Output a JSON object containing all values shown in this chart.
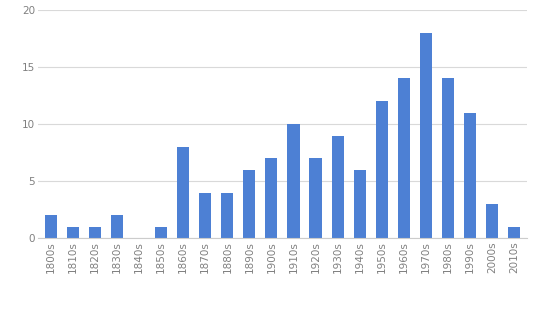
{
  "categories": [
    "1800s",
    "1810s",
    "1820s",
    "1830s",
    "1840s",
    "1850s",
    "1860s",
    "1870s",
    "1880s",
    "1890s",
    "1900s",
    "1910s",
    "1920s",
    "1930s",
    "1940s",
    "1950s",
    "1960s",
    "1970s",
    "1980s",
    "1990s",
    "2000s",
    "2010s"
  ],
  "values": [
    2,
    1,
    1,
    2,
    0,
    1,
    8,
    4,
    4,
    6,
    7,
    10,
    7,
    9,
    6,
    12,
    14,
    18,
    14,
    11,
    3,
    1
  ],
  "bar_color": "#4d80d4",
  "background_color": "#ffffff",
  "ylim": [
    0,
    20
  ],
  "yticks": [
    0,
    5,
    10,
    15,
    20
  ],
  "grid_color": "#d9d9d9",
  "tick_label_color": "#808080",
  "tick_label_fontsize": 7.5,
  "bar_width": 0.55
}
